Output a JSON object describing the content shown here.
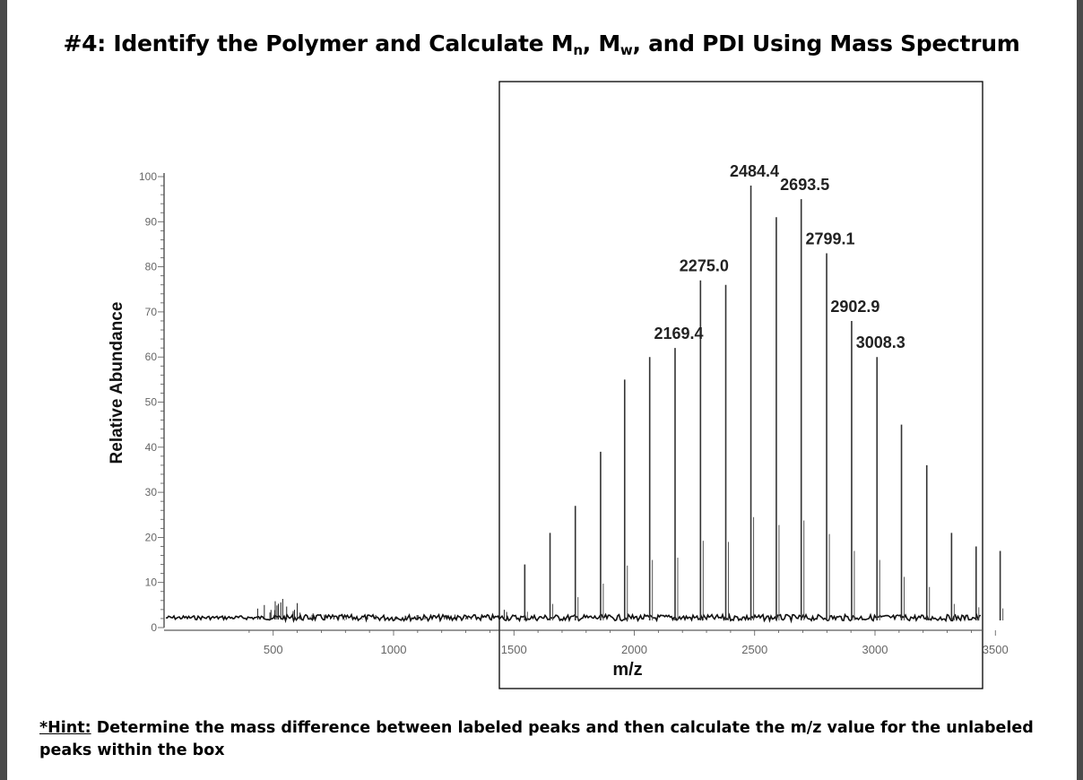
{
  "title": {
    "prefix": "#4: Identify the Polymer and Calculate M",
    "n_sub": "n",
    "comma1": ", M",
    "w_sub": "w",
    "suffix": ", and PDI Using Mass Spectrum"
  },
  "hint": {
    "lead": "*Hint:",
    "text": " Determine the mass difference between labeled peaks and then calculate the m/z value for the unlabeled peaks within the box"
  },
  "chart_data": {
    "type": "line",
    "title": "",
    "xlabel": "m/z",
    "ylabel": "Relative Abundance",
    "xlim": [
      330,
      3570
    ],
    "ylim": [
      0,
      100
    ],
    "x_ticks": [
      500,
      1000,
      1500,
      2000,
      2500,
      3000,
      3500
    ],
    "y_ticks": [
      0,
      10,
      20,
      30,
      40,
      50,
      60,
      70,
      80,
      90,
      100
    ],
    "peak_labels": [
      {
        "x": 2169.4,
        "text": "2169.4"
      },
      {
        "x": 2275.0,
        "text": "2275.0"
      },
      {
        "x": 2484.4,
        "text": "2484.4"
      },
      {
        "x": 2693.5,
        "text": "2693.5"
      },
      {
        "x": 2799.1,
        "text": "2799.1"
      },
      {
        "x": 2902.9,
        "text": "2902.9"
      },
      {
        "x": 3008.3,
        "text": "3008.3"
      }
    ],
    "peaks": [
      {
        "x": 1545,
        "y": 14
      },
      {
        "x": 1650,
        "y": 21
      },
      {
        "x": 1755,
        "y": 27
      },
      {
        "x": 1860,
        "y": 39
      },
      {
        "x": 1960,
        "y": 55
      },
      {
        "x": 2064,
        "y": 60
      },
      {
        "x": 2169.4,
        "y": 62
      },
      {
        "x": 2275.0,
        "y": 77
      },
      {
        "x": 2380,
        "y": 76
      },
      {
        "x": 2484.4,
        "y": 98
      },
      {
        "x": 2590,
        "y": 91
      },
      {
        "x": 2693.5,
        "y": 95
      },
      {
        "x": 2799.1,
        "y": 83
      },
      {
        "x": 2902.9,
        "y": 68
      },
      {
        "x": 3008.3,
        "y": 60
      },
      {
        "x": 3110,
        "y": 45
      },
      {
        "x": 3215,
        "y": 36
      },
      {
        "x": 3318,
        "y": 21
      },
      {
        "x": 3420,
        "y": 18
      },
      {
        "x": 3520,
        "y": 17
      }
    ],
    "noise_clusters": [
      {
        "x": 480,
        "y": 7
      },
      {
        "x": 520,
        "y": 6
      },
      {
        "x": 560,
        "y": 8
      },
      {
        "x": 620,
        "y": 4
      },
      {
        "x": 700,
        "y": 4
      },
      {
        "x": 780,
        "y": 3
      },
      {
        "x": 850,
        "y": 3
      },
      {
        "x": 940,
        "y": 3
      },
      {
        "x": 1030,
        "y": 3
      },
      {
        "x": 1130,
        "y": 3
      },
      {
        "x": 1230,
        "y": 3
      },
      {
        "x": 1330,
        "y": 3
      },
      {
        "x": 1430,
        "y": 4
      }
    ],
    "highlight_box": {
      "x_range": [
        1510,
        3570
      ]
    },
    "grid": false,
    "legend": "none"
  }
}
